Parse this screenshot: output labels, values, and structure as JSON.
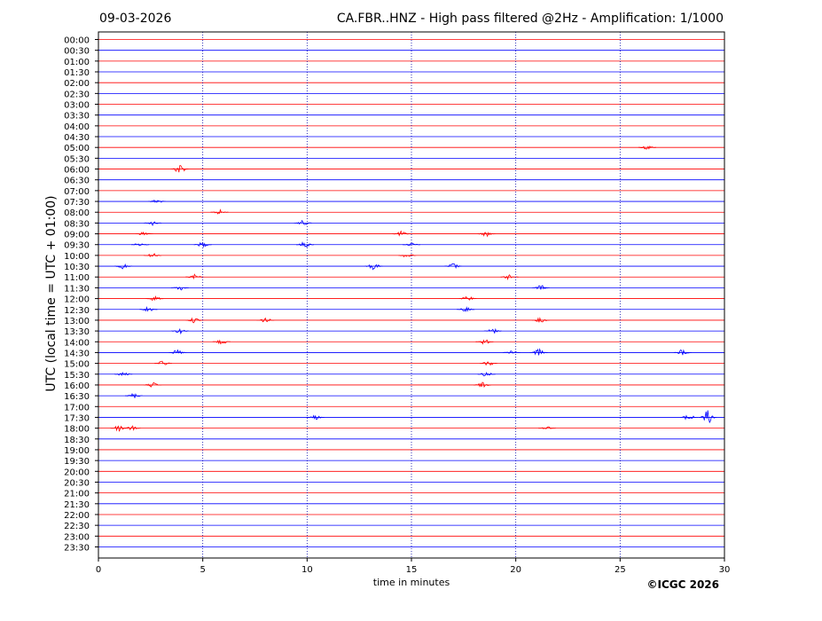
{
  "header": {
    "date": "09-03-2026",
    "title": "CA.FBR..HNZ - High pass filtered @2Hz - Amplification: 1/1000"
  },
  "footer": {
    "copyright": "©ICGC 2026"
  },
  "colors": {
    "even_trace": "#ff0000",
    "odd_trace": "#0000ff",
    "grid": "#0000aa",
    "frame": "#000000"
  },
  "chart_data": {
    "type": "line",
    "xlabel": "time in minutes",
    "ylabel": "UTC (local time = UTC + 01:00)",
    "xlim": [
      0,
      30
    ],
    "x_ticks": [
      "0",
      "5",
      "10",
      "15",
      "20",
      "25",
      "30"
    ],
    "x_tick_values": [
      0,
      5,
      10,
      15,
      20,
      25,
      30
    ],
    "grid_x": true,
    "y_labels": [
      "00:00",
      "00:30",
      "01:00",
      "01:30",
      "02:00",
      "02:30",
      "03:00",
      "03:30",
      "04:00",
      "04:30",
      "05:00",
      "05:30",
      "06:00",
      "06:30",
      "07:00",
      "07:30",
      "08:00",
      "08:30",
      "09:00",
      "09:30",
      "10:00",
      "10:30",
      "11:00",
      "11:30",
      "12:00",
      "12:30",
      "13:00",
      "13:30",
      "14:00",
      "14:30",
      "15:00",
      "15:30",
      "16:00",
      "16:30",
      "17:00",
      "17:30",
      "18:00",
      "18:30",
      "19:00",
      "19:30",
      "20:00",
      "20:30",
      "21:00",
      "21:30",
      "22:00",
      "22:30",
      "23:00",
      "23:30"
    ],
    "events": [
      {
        "row": 10,
        "t": 26.3,
        "amp": 3
      },
      {
        "row": 12,
        "t": 3.9,
        "amp": 6
      },
      {
        "row": 15,
        "t": 2.8,
        "amp": 2.5
      },
      {
        "row": 16,
        "t": 5.8,
        "amp": 3
      },
      {
        "row": 17,
        "t": 2.6,
        "amp": 2.5
      },
      {
        "row": 17,
        "t": 9.8,
        "amp": 3
      },
      {
        "row": 18,
        "t": 2.2,
        "amp": 3
      },
      {
        "row": 18,
        "t": 14.5,
        "amp": 3
      },
      {
        "row": 18,
        "t": 18.6,
        "amp": 3
      },
      {
        "row": 19,
        "t": 2.0,
        "amp": 3
      },
      {
        "row": 19,
        "t": 5.0,
        "amp": 3
      },
      {
        "row": 19,
        "t": 9.9,
        "amp": 3.5
      },
      {
        "row": 19,
        "t": 15.0,
        "amp": 2
      },
      {
        "row": 20,
        "t": 2.6,
        "amp": 3
      },
      {
        "row": 20,
        "t": 14.8,
        "amp": 3
      },
      {
        "row": 21,
        "t": 1.2,
        "amp": 3
      },
      {
        "row": 21,
        "t": 13.2,
        "amp": 4
      },
      {
        "row": 21,
        "t": 17.0,
        "amp": 3.5
      },
      {
        "row": 22,
        "t": 4.6,
        "amp": 3
      },
      {
        "row": 22,
        "t": 19.7,
        "amp": 3
      },
      {
        "row": 23,
        "t": 3.9,
        "amp": 3
      },
      {
        "row": 23,
        "t": 21.2,
        "amp": 3
      },
      {
        "row": 24,
        "t": 2.7,
        "amp": 3
      },
      {
        "row": 24,
        "t": 17.7,
        "amp": 3
      },
      {
        "row": 25,
        "t": 2.4,
        "amp": 3
      },
      {
        "row": 25,
        "t": 17.6,
        "amp": 3
      },
      {
        "row": 26,
        "t": 4.6,
        "amp": 3
      },
      {
        "row": 26,
        "t": 8.0,
        "amp": 3
      },
      {
        "row": 26,
        "t": 21.2,
        "amp": 3
      },
      {
        "row": 27,
        "t": 3.9,
        "amp": 3
      },
      {
        "row": 27,
        "t": 18.9,
        "amp": 3
      },
      {
        "row": 28,
        "t": 5.9,
        "amp": 3
      },
      {
        "row": 28,
        "t": 18.5,
        "amp": 3
      },
      {
        "row": 29,
        "t": 3.8,
        "amp": 3
      },
      {
        "row": 29,
        "t": 19.8,
        "amp": 3
      },
      {
        "row": 29,
        "t": 21.1,
        "amp": 4
      },
      {
        "row": 29,
        "t": 28.0,
        "amp": 4
      },
      {
        "row": 30,
        "t": 3.1,
        "amp": 3
      },
      {
        "row": 30,
        "t": 18.7,
        "amp": 3
      },
      {
        "row": 31,
        "t": 1.2,
        "amp": 3
      },
      {
        "row": 31,
        "t": 18.6,
        "amp": 3
      },
      {
        "row": 32,
        "t": 2.6,
        "amp": 3
      },
      {
        "row": 32,
        "t": 18.4,
        "amp": 3
      },
      {
        "row": 33,
        "t": 1.7,
        "amp": 3
      },
      {
        "row": 35,
        "t": 10.4,
        "amp": 2.5
      },
      {
        "row": 35,
        "t": 28.3,
        "amp": 4
      },
      {
        "row": 35,
        "t": 29.2,
        "amp": 8
      },
      {
        "row": 36,
        "t": 1.0,
        "amp": 4
      },
      {
        "row": 36,
        "t": 1.6,
        "amp": 2.5
      },
      {
        "row": 36,
        "t": 21.5,
        "amp": 2
      }
    ]
  }
}
